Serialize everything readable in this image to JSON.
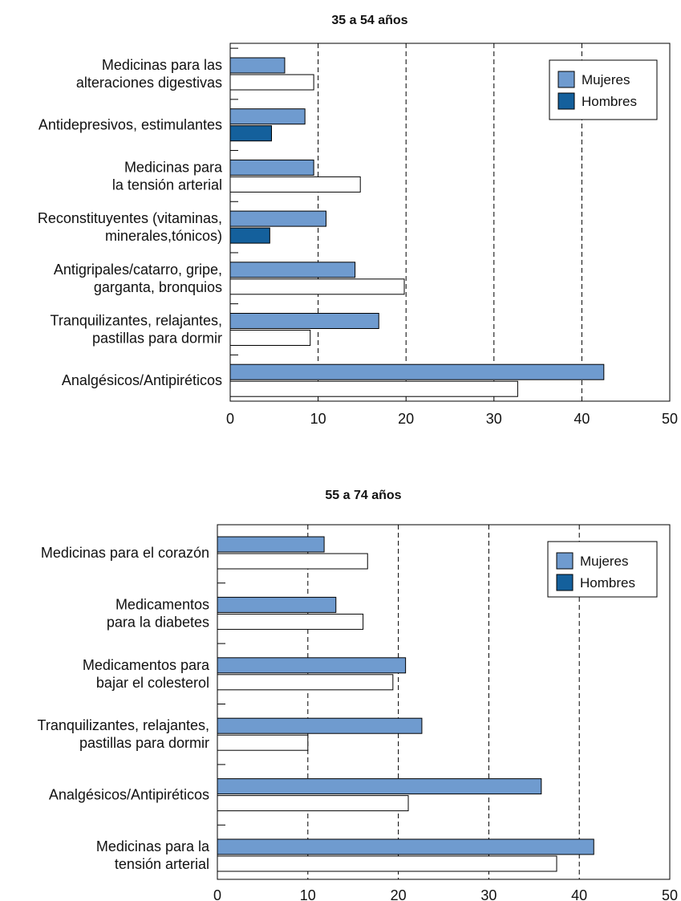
{
  "colors": {
    "mujeres": "#6f9bcf",
    "hombres": "#14609c",
    "outline": "#000000",
    "bar_white": "#ffffff"
  },
  "chart_data": [
    {
      "type": "bar",
      "orientation": "horizontal",
      "title": "35 a 54 años",
      "categories": [
        [
          "Medicinas para las",
          "alteraciones digestivas"
        ],
        [
          "Antidepresivos, estimulantes"
        ],
        [
          "Medicinas para",
          "la tensión arterial"
        ],
        [
          "Reconstituyentes (vitaminas,",
          "minerales,tónicos)"
        ],
        [
          "Antigripales/catarro, gripe,",
          "garganta, bronquios"
        ],
        [
          "Tranquilizantes, relajantes,",
          "pastillas para dormir"
        ],
        [
          "Analgésicos/Antipiréticos"
        ]
      ],
      "series": [
        {
          "name": "Mujeres",
          "values": [
            6.2,
            8.5,
            9.5,
            10.9,
            14.2,
            16.9,
            42.5
          ]
        },
        {
          "name": "Hombres",
          "values": [
            9.5,
            4.7,
            14.8,
            4.5,
            19.8,
            9.1,
            32.7
          ],
          "fills": [
            "white",
            "hombres",
            "white",
            "hombres",
            "white",
            "white",
            "white"
          ]
        }
      ],
      "xticks": [
        "0",
        "10",
        "20",
        "30",
        "40",
        "50"
      ],
      "xlim": [
        0,
        50
      ],
      "grid": "vertical dashed",
      "legend": "top-right"
    },
    {
      "type": "bar",
      "orientation": "horizontal",
      "title": "55 a 74 años",
      "categories": [
        [
          "Medicinas para el corazón"
        ],
        [
          "Medicamentos",
          "para la diabetes"
        ],
        [
          "Medicamentos para",
          "bajar el colesterol"
        ],
        [
          "Tranquilizantes, relajantes,",
          "pastillas para dormir"
        ],
        [
          "Analgésicos/Antipiréticos"
        ],
        [
          "Medicinas para la",
          "tensión arterial"
        ]
      ],
      "series": [
        {
          "name": "Mujeres",
          "values": [
            11.8,
            13.1,
            20.8,
            22.6,
            35.8,
            41.6
          ]
        },
        {
          "name": "Hombres",
          "values": [
            16.6,
            16.1,
            19.4,
            10.0,
            21.1,
            37.5
          ],
          "fills": [
            "white",
            "white",
            "white",
            "white",
            "white",
            "white"
          ]
        }
      ],
      "xticks": [
        "0",
        "10",
        "20",
        "30",
        "40",
        "50"
      ],
      "xlim": [
        0,
        50
      ],
      "grid": "vertical dashed",
      "legend": "top-right"
    }
  ]
}
